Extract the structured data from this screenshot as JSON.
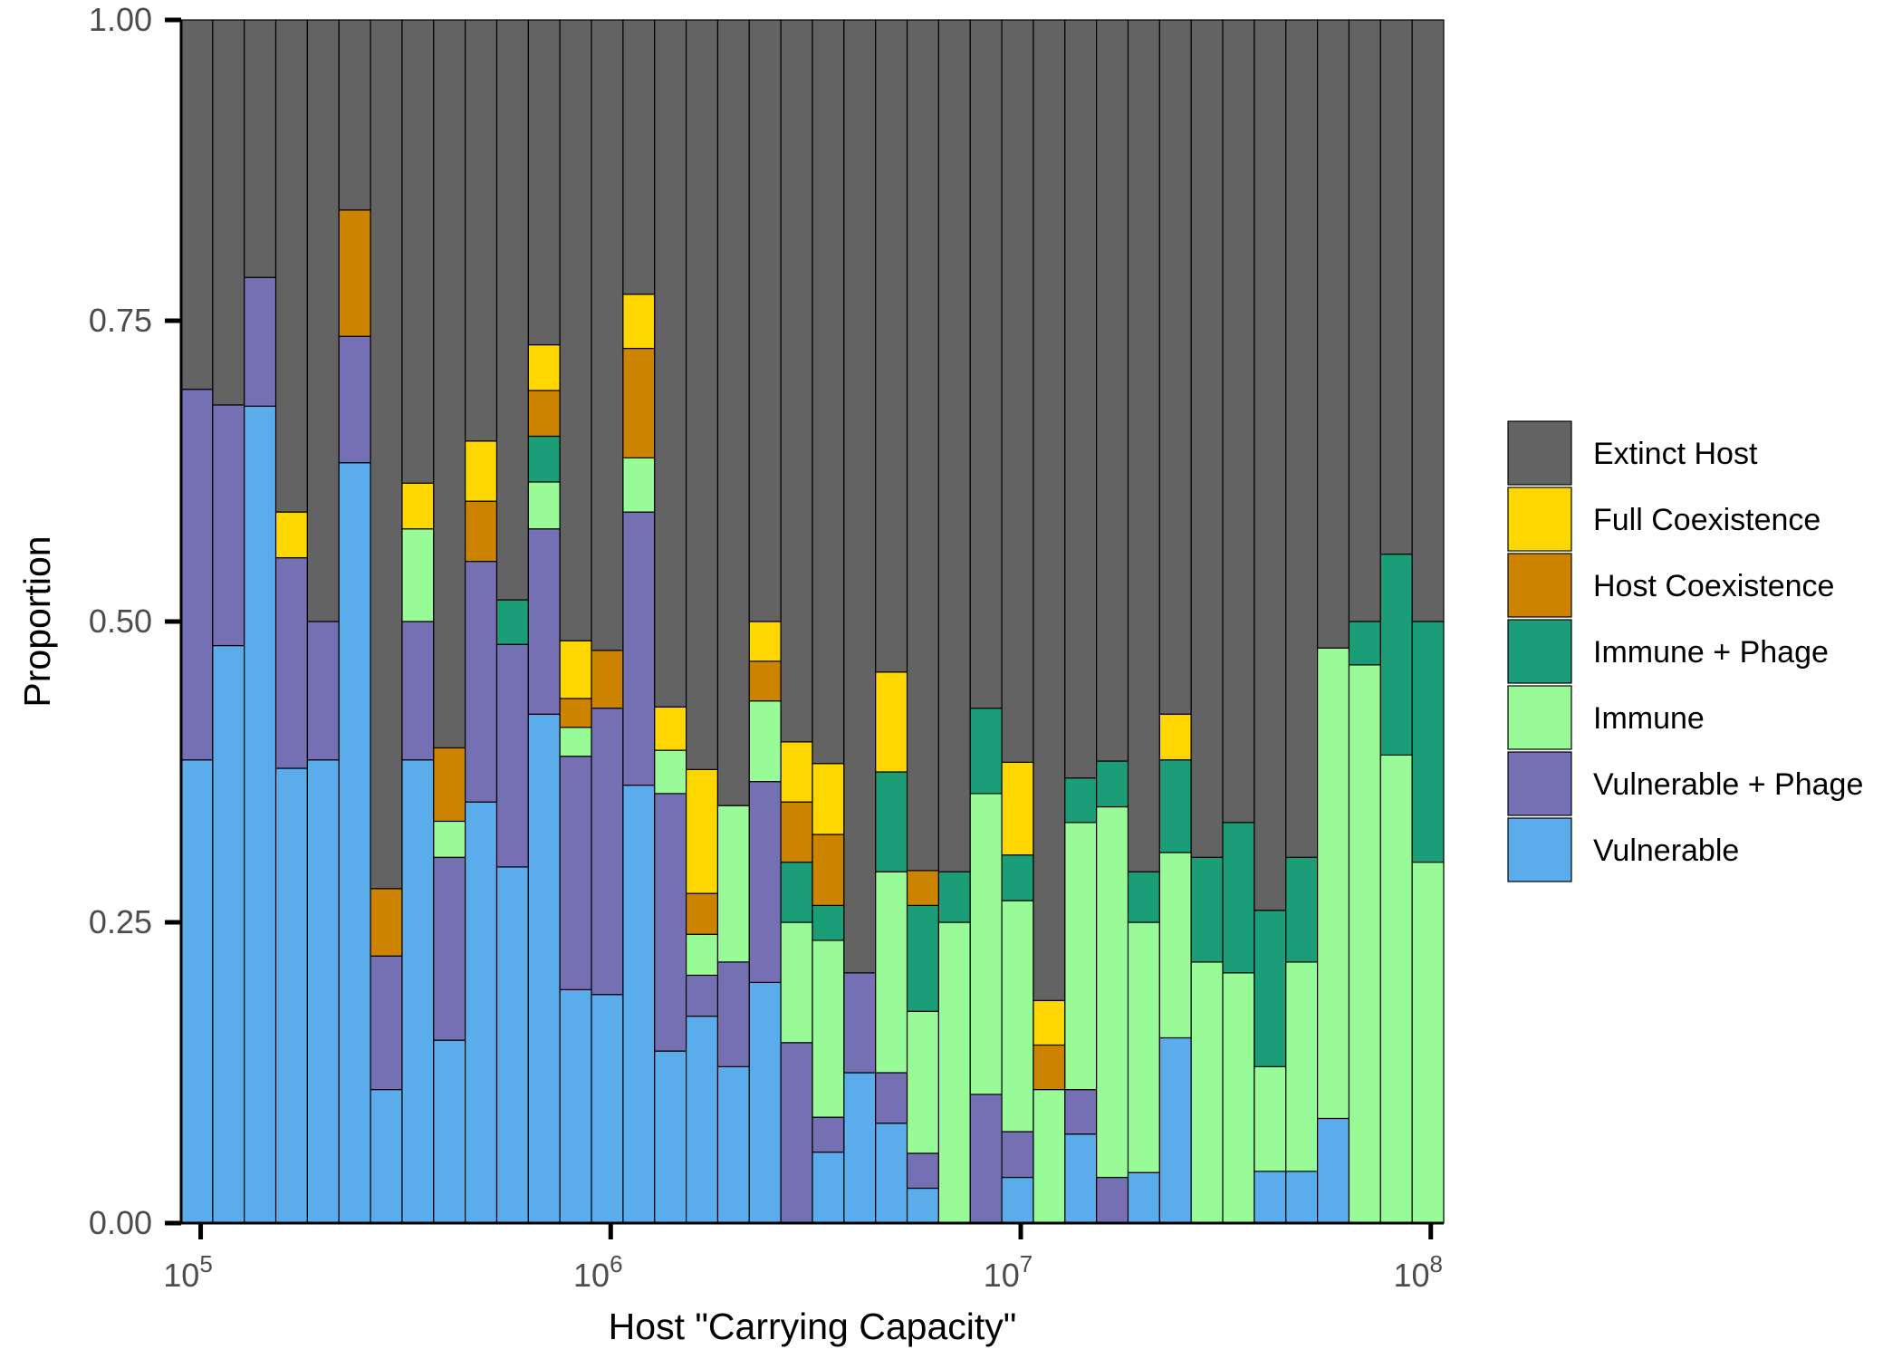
{
  "chart_data": {
    "type": "bar",
    "stacked": true,
    "xlabel": "Host \"Carrying Capacity\"",
    "ylabel": "Proportion",
    "x_scale": "log10",
    "x_ticks": [
      {
        "value": 100000,
        "base": "10",
        "exp": "5"
      },
      {
        "value": 1000000,
        "base": "10",
        "exp": "6"
      },
      {
        "value": 10000000,
        "base": "10",
        "exp": "7"
      },
      {
        "value": 100000000,
        "base": "10",
        "exp": "8"
      }
    ],
    "ylim": [
      0,
      1
    ],
    "y_ticks": [
      {
        "value": 0.0,
        "label": "0.00"
      },
      {
        "value": 0.25,
        "label": "0.25"
      },
      {
        "value": 0.5,
        "label": "0.50"
      },
      {
        "value": 0.75,
        "label": "0.75"
      },
      {
        "value": 1.0,
        "label": "1.00"
      }
    ],
    "legend_position": "right",
    "categories": [
      "9.7e4",
      "1.2e5",
      "1.5e5",
      "1.8e5",
      "2.0e5",
      "2.4e5",
      "2.9e5",
      "3.5e5",
      "4.2e5",
      "5.0e5",
      "5.9e5",
      "7.1e5",
      "8.5e5",
      "1.0e6",
      "1.2e6",
      "1.4e6",
      "1.7e6",
      "2.1e6",
      "2.5e6",
      "3.0e6",
      "3.5e6",
      "4.2e6",
      "5.1e6",
      "6.0e6",
      "7.2e6",
      "8.5e6",
      "1.0e7",
      "1.2e7",
      "1.4e7",
      "1.7e7",
      "2.1e7",
      "2.5e7",
      "2.9e7",
      "3.5e7",
      "4.2e7",
      "5.0e7",
      "5.9e7",
      "7.1e7",
      "8.5e7",
      "1.0e8"
    ],
    "series": [
      {
        "name": "Vulnerable",
        "color": "#5AACEA",
        "values": [
          0.385,
          0.48,
          0.679,
          0.378,
          0.385,
          0.632,
          0.111,
          0.385,
          0.152,
          0.35,
          0.296,
          0.423,
          0.194,
          0.19,
          0.364,
          0.143,
          0.172,
          0.13,
          0.2,
          0,
          0.059,
          0.125,
          0.083,
          0.029,
          0,
          0,
          0.038,
          0,
          0.074,
          0,
          0.042,
          0.154,
          0,
          0,
          0.043,
          0.043,
          0.087,
          0,
          0,
          0
        ]
      },
      {
        "name": "Vulnerable + Phage",
        "color": "#7570B3",
        "values": [
          0.308,
          0.2,
          0.107,
          0.175,
          0.115,
          0.105,
          0.111,
          0.115,
          0.152,
          0.2,
          0.185,
          0.154,
          0.194,
          0.238,
          0.227,
          0.214,
          0.034,
          0.087,
          0.167,
          0.15,
          0.029,
          0.083,
          0.042,
          0.029,
          0,
          0.107,
          0.038,
          0,
          0.037,
          0.038,
          0,
          0,
          0,
          0,
          0,
          0,
          0,
          0,
          0,
          0
        ]
      },
      {
        "name": "Immune",
        "color": "#98FB98",
        "values": [
          0,
          0,
          0,
          0,
          0,
          0,
          0,
          0.077,
          0.03,
          0,
          0,
          0.039,
          0.024,
          0,
          0.045,
          0.036,
          0.034,
          0.13,
          0.067,
          0.1,
          0.147,
          0,
          0.167,
          0.118,
          0.25,
          0.25,
          0.192,
          0.111,
          0.222,
          0.308,
          0.208,
          0.154,
          0.217,
          0.208,
          0.087,
          0.174,
          0.391,
          0.464,
          0.389,
          0.3
        ]
      },
      {
        "name": "Immune + Phage",
        "color": "#1B9E77",
        "values": [
          0,
          0,
          0,
          0,
          0,
          0,
          0,
          0,
          0,
          0,
          0.037,
          0.038,
          0,
          0,
          0,
          0,
          0,
          0,
          0,
          0.05,
          0.029,
          0,
          0.083,
          0.088,
          0.042,
          0.071,
          0.038,
          0,
          0.037,
          0.038,
          0.042,
          0.077,
          0.087,
          0.125,
          0.13,
          0.087,
          0,
          0.036,
          0.167,
          0.2
        ]
      },
      {
        "name": "Host Coexistence",
        "color": "#CC8400",
        "values": [
          0,
          0,
          0,
          0,
          0,
          0.105,
          0.056,
          0,
          0.061,
          0.05,
          0,
          0.038,
          0.024,
          0.048,
          0.091,
          0,
          0.034,
          0,
          0.033,
          0.05,
          0.059,
          0,
          0,
          0.029,
          0,
          0,
          0,
          0.037,
          0,
          0,
          0,
          0,
          0,
          0,
          0,
          0,
          0,
          0,
          0,
          0
        ]
      },
      {
        "name": "Full Coexistence",
        "color": "#FFD700",
        "values": [
          0,
          0,
          0,
          0.038,
          0,
          0,
          0,
          0.038,
          0,
          0.05,
          0,
          0.038,
          0.048,
          0,
          0.045,
          0.036,
          0.103,
          0,
          0.033,
          0.05,
          0.059,
          0,
          0.083,
          0,
          0,
          0,
          0.077,
          0.037,
          0,
          0,
          0,
          0.038,
          0,
          0,
          0,
          0,
          0,
          0,
          0,
          0
        ]
      },
      {
        "name": "Extinct Host",
        "color": "#636363",
        "values": [
          0.307,
          0.32,
          0.214,
          0.409,
          0.5,
          0.158,
          0.722,
          0.385,
          0.605,
          0.35,
          0.482,
          0.27,
          0.516,
          0.524,
          0.228,
          0.571,
          0.623,
          0.653,
          0.5,
          0.6,
          0.618,
          0.792,
          0.542,
          0.707,
          0.708,
          0.572,
          0.617,
          0.815,
          0.63,
          0.616,
          0.708,
          0.577,
          0.696,
          0.667,
          0.74,
          0.696,
          0.522,
          0.5,
          0.444,
          0.5
        ]
      }
    ],
    "legend": [
      {
        "name": "Extinct Host",
        "color": "#636363"
      },
      {
        "name": "Full Coexistence",
        "color": "#FFD700"
      },
      {
        "name": "Host Coexistence",
        "color": "#CC8400"
      },
      {
        "name": "Immune + Phage",
        "color": "#1B9E77"
      },
      {
        "name": "Immune",
        "color": "#98FB98"
      },
      {
        "name": "Vulnerable + Phage",
        "color": "#7570B3"
      },
      {
        "name": "Vulnerable",
        "color": "#5AACEA"
      }
    ]
  }
}
